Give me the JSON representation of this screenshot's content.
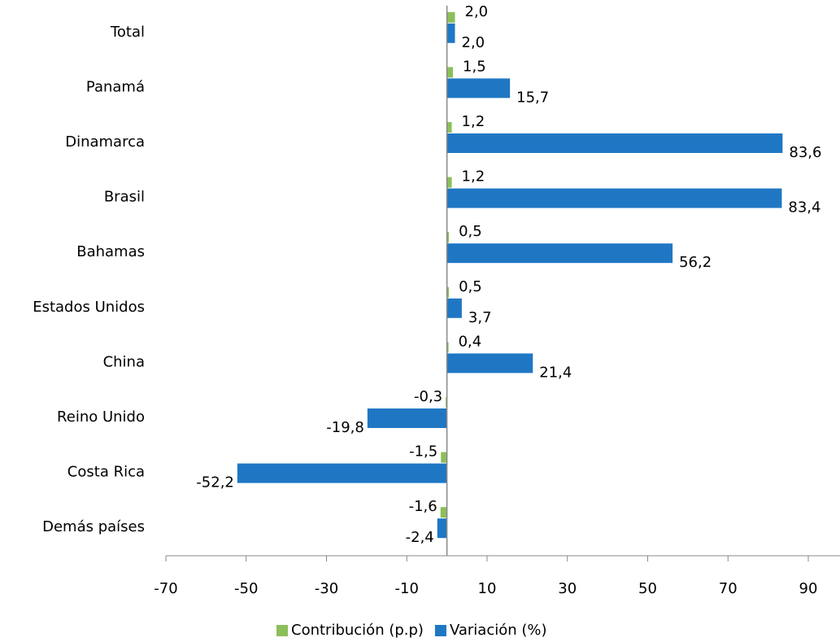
{
  "chart_data": {
    "type": "bar",
    "orientation": "horizontal",
    "categories": [
      "Total",
      "Panamá",
      "Dinamarca",
      "Brasil",
      "Bahamas",
      "Estados Unidos",
      "China",
      "Reino Unido",
      "Costa Rica",
      "Demás países"
    ],
    "series": [
      {
        "name": "Contribución (p.p)",
        "color": "#8cbf5a",
        "values": [
          2.0,
          1.5,
          1.2,
          1.2,
          0.5,
          0.5,
          0.4,
          -0.3,
          -1.5,
          -1.6
        ],
        "value_labels": [
          "2,0",
          "1,5",
          "1,2",
          "1,2",
          "0,5",
          "0,5",
          "0,4",
          "-0,3",
          "-1,5",
          "-1,6"
        ]
      },
      {
        "name": "Variación (%)",
        "color": "#1f77c4",
        "values": [
          2.0,
          15.7,
          83.6,
          83.4,
          56.2,
          3.7,
          21.4,
          -19.8,
          -52.2,
          -2.4
        ],
        "value_labels": [
          "2,0",
          "15,7",
          "83,6",
          "83,4",
          "56,2",
          "3,7",
          "21,4",
          "-19,8",
          "-52,2",
          "-2,4"
        ]
      }
    ],
    "xlim": [
      -70,
      100
    ],
    "xticks": [
      -70,
      -50,
      -30,
      -10,
      10,
      30,
      50,
      70,
      90
    ],
    "legend": "bottom"
  }
}
